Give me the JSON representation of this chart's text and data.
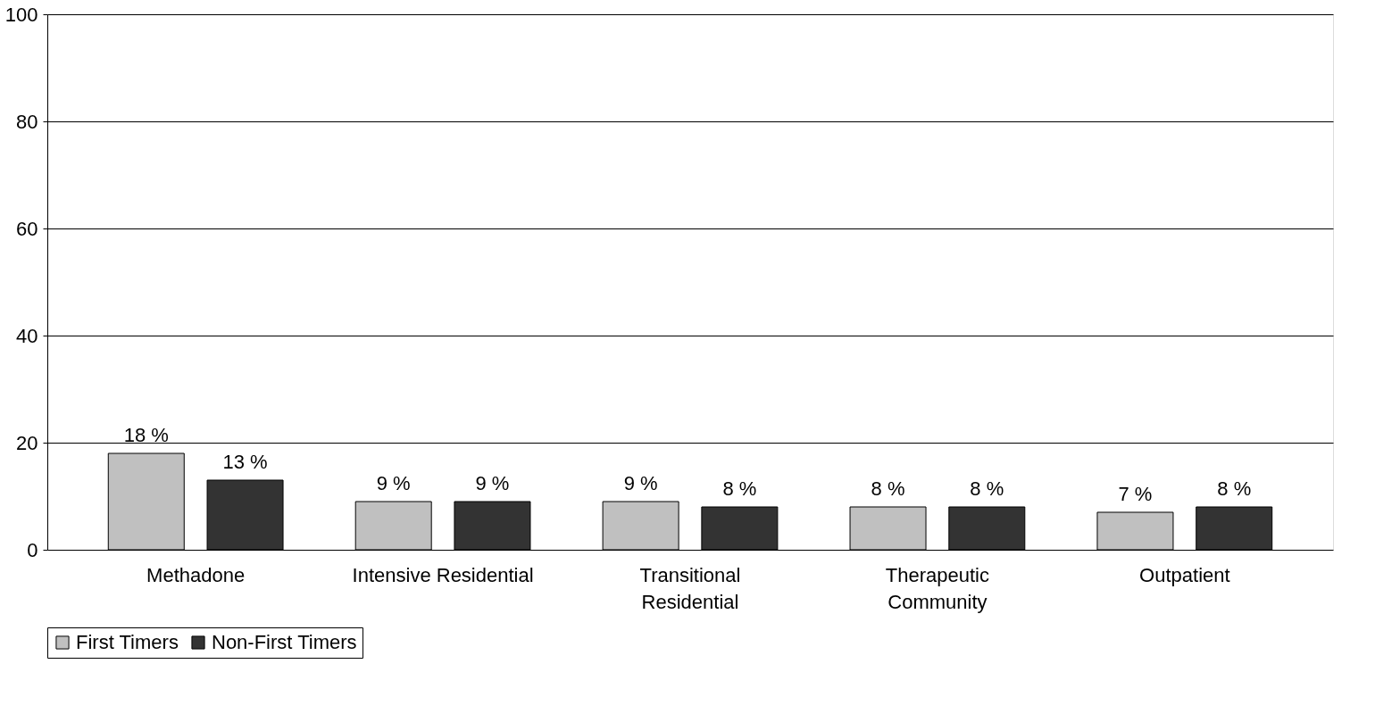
{
  "chart_data": {
    "type": "bar",
    "categories": [
      "Methadone",
      "Intensive Residential",
      "Transitional\nResidential",
      "Therapeutic\nCommunity",
      "Outpatient"
    ],
    "series": [
      {
        "name": "First Timers",
        "color": "#c0c0c0",
        "values": [
          18,
          9,
          9,
          8,
          7
        ],
        "value_labels": [
          "18 %",
          "9 %",
          "9 %",
          "8 %",
          "7 %"
        ]
      },
      {
        "name": "Non-First Timers",
        "color": "#333333",
        "values": [
          13,
          9,
          8,
          8,
          8
        ],
        "value_labels": [
          "13 %",
          "9 %",
          "8 %",
          "8 %",
          "8 %"
        ]
      }
    ],
    "ylim": [
      0,
      100
    ],
    "yticks": [
      0,
      20,
      40,
      60,
      80,
      100
    ],
    "grid": "y",
    "legend": "bottom"
  }
}
